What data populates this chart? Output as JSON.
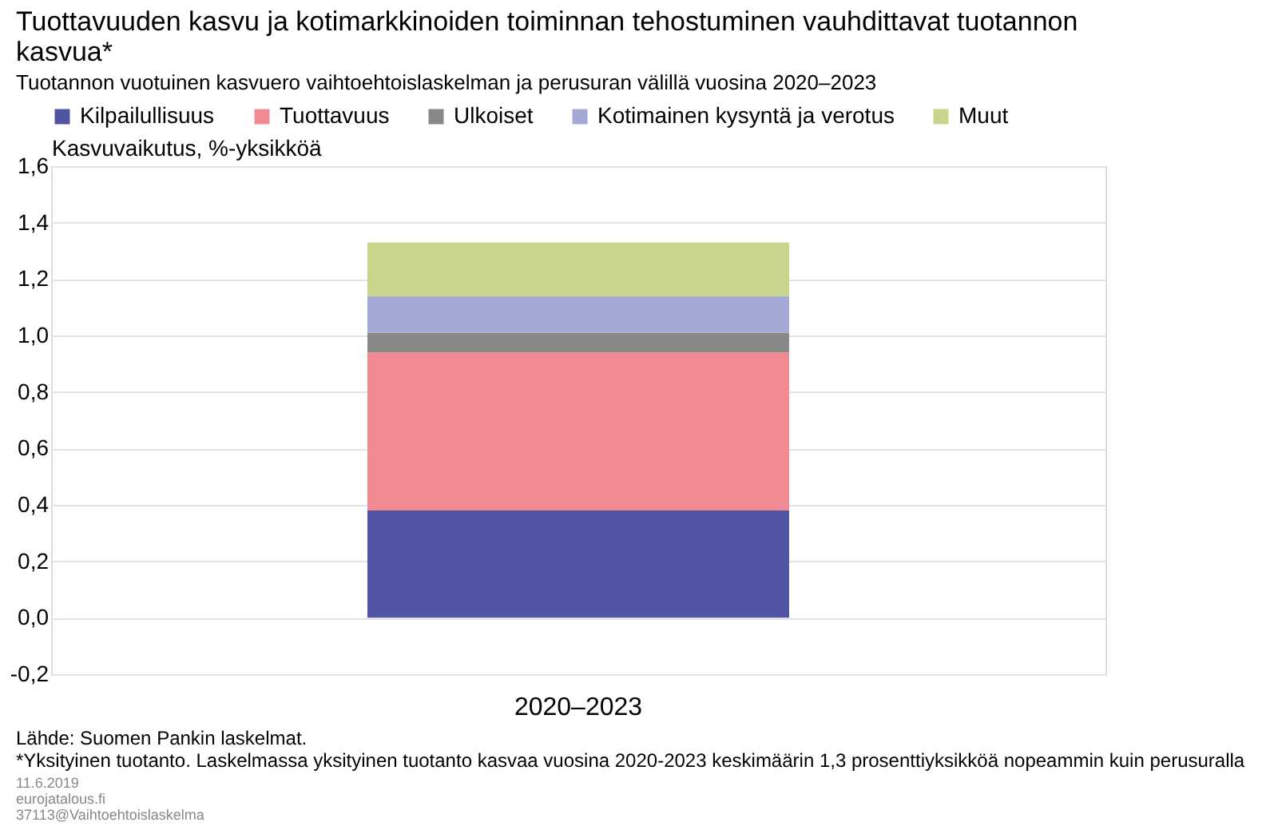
{
  "chart_data": {
    "type": "bar",
    "title": "Tuottavuuden kasvu ja kotimarkkinoiden toiminnan tehostuminen vauhdittavat tuotannon kasvua*",
    "subtitle": "Tuotannon vuotuinen kasvuero vaihtoehtoislaskelman ja perusuran välillä vuosina 2020–2023",
    "ylabel": "Kasvuvaikutus,  %-yksikköä",
    "categories": [
      "2020–2023"
    ],
    "stacked": true,
    "series": [
      {
        "name": "Kilpailullisuus",
        "color": "#4f55a3",
        "values": [
          0.38
        ]
      },
      {
        "name": "Tuottavuus",
        "color": "#f08b93",
        "values": [
          0.56
        ]
      },
      {
        "name": "Ulkoiset",
        "color": "#888888",
        "values": [
          0.07
        ]
      },
      {
        "name": "Kotimainen kysyntä ja verotus",
        "color": "#a4a8d4",
        "values": [
          0.13
        ]
      },
      {
        "name": "Muut",
        "color": "#c9d58a",
        "values": [
          0.19
        ]
      }
    ],
    "ylim": [
      -0.2,
      1.6
    ],
    "yticks": [
      {
        "value": -0.2,
        "label": "-0,2"
      },
      {
        "value": 0,
        "label": "0,0"
      },
      {
        "value": 0.2,
        "label": "0,2"
      },
      {
        "value": 0.4,
        "label": "0,4"
      },
      {
        "value": 0.6,
        "label": "0,6"
      },
      {
        "value": 0.8,
        "label": "0,8"
      },
      {
        "value": 1.0,
        "label": "1,0"
      },
      {
        "value": 1.2,
        "label": "1,2"
      },
      {
        "value": 1.4,
        "label": "1,4"
      },
      {
        "value": 1.6,
        "label": "1,6"
      }
    ],
    "grid": "y",
    "legend": "top",
    "annotations": [
      "Lähde: Suomen Pankin laskelmat.",
      "*Yksityinen tuotanto. Laskelmassa yksityinen tuotanto kasvaa vuosina 2020-2023 keskimäärin 1,3 prosenttiyksikköä nopeammin kuin perusuralla",
      "11.6.2019",
      "eurojatalous.fi",
      "37113@Vaihtoehtoislaskelma"
    ]
  }
}
